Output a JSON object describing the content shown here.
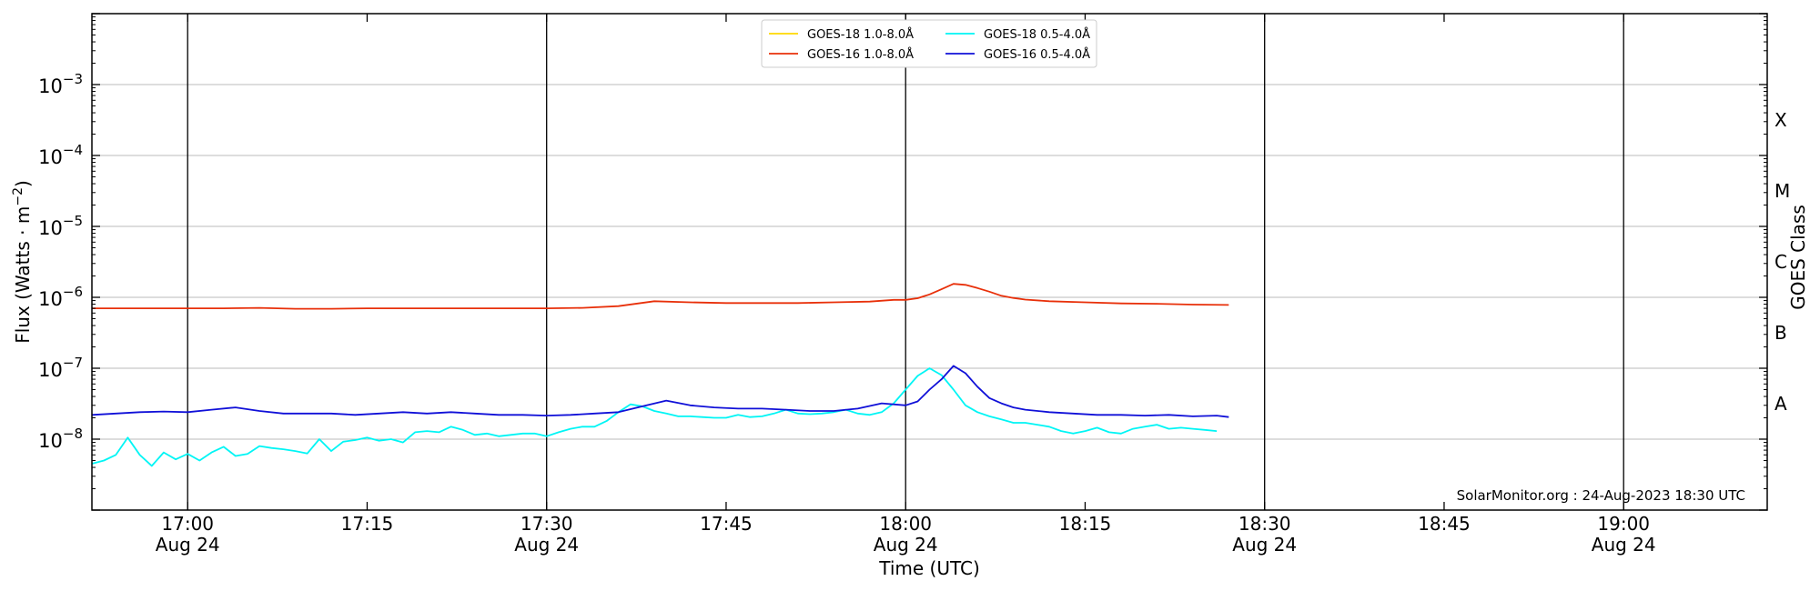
{
  "chart_data": {
    "type": "line",
    "title": "",
    "xlabel": "Time (UTC)",
    "ylabel": "Flux (Watts · m⁻²)",
    "y2label": "GOES Class",
    "yscale": "log",
    "ylim": [
      1e-09,
      0.01
    ],
    "y_tick_labels": [
      {
        "value": 1e-08,
        "base": "10",
        "exp": "−8"
      },
      {
        "value": 1e-07,
        "base": "10",
        "exp": "−7"
      },
      {
        "value": 1e-06,
        "base": "10",
        "exp": "−6"
      },
      {
        "value": 1e-05,
        "base": "10",
        "exp": "−5"
      },
      {
        "value": 0.0001,
        "base": "10",
        "exp": "−4"
      },
      {
        "value": 0.001,
        "base": "10",
        "exp": "−3"
      }
    ],
    "goes_classes": [
      {
        "label": "A",
        "value": 3.16e-08
      },
      {
        "label": "B",
        "value": 3.16e-07
      },
      {
        "label": "C",
        "value": 3.16e-06
      },
      {
        "label": "M",
        "value": 3.16e-05
      },
      {
        "label": "X",
        "value": 0.000316
      }
    ],
    "xlim": [
      "16:52",
      "19:12"
    ],
    "x_ticks": [
      {
        "time": "17:00",
        "label": "17:00",
        "date": "Aug 24"
      },
      {
        "time": "17:15",
        "label": "17:15",
        "date": ""
      },
      {
        "time": "17:30",
        "label": "17:30",
        "date": "Aug 24"
      },
      {
        "time": "17:45",
        "label": "17:45",
        "date": ""
      },
      {
        "time": "18:00",
        "label": "18:00",
        "date": "Aug 24"
      },
      {
        "time": "18:15",
        "label": "18:15",
        "date": ""
      },
      {
        "time": "18:30",
        "label": "18:30",
        "date": "Aug 24"
      },
      {
        "time": "18:45",
        "label": "18:45",
        "date": ""
      },
      {
        "time": "19:00",
        "label": "19:00",
        "date": "Aug 24"
      }
    ],
    "vertical_markers": [
      "17:00",
      "17:30",
      "18:00",
      "18:30",
      "19:00"
    ],
    "grid": "horizontal at decades",
    "legend": {
      "placement": "top-center",
      "columns": 2
    },
    "annotation": "SolarMonitor.org : 24-Aug-2023 18:30 UTC",
    "series": [
      {
        "name": "GOES-18 1.0-8.0Å",
        "color": "#ffd800",
        "x": [],
        "y": []
      },
      {
        "name": "GOES-16 1.0-8.0Å",
        "color": "#e8300a",
        "x": [
          "16:52",
          "17:00",
          "17:03",
          "17:06",
          "17:09",
          "17:12",
          "17:15",
          "17:18",
          "17:21",
          "17:24",
          "17:27",
          "17:30",
          "17:33",
          "17:36",
          "17:39",
          "17:42",
          "17:45",
          "17:48",
          "17:51",
          "17:54",
          "17:57",
          "17:59",
          "18:00",
          "18:01",
          "18:02",
          "18:03",
          "18:04",
          "18:05",
          "18:06",
          "18:07",
          "18:08",
          "18:09",
          "18:10",
          "18:12",
          "18:15",
          "18:18",
          "18:21",
          "18:24",
          "18:27"
        ],
        "y": [
          7e-07,
          7e-07,
          7e-07,
          7.1e-07,
          6.9e-07,
          6.9e-07,
          7e-07,
          7e-07,
          7e-07,
          7e-07,
          7e-07,
          7e-07,
          7.1e-07,
          7.5e-07,
          8.8e-07,
          8.5e-07,
          8.3e-07,
          8.3e-07,
          8.3e-07,
          8.5e-07,
          8.7e-07,
          9.2e-07,
          9.2e-07,
          9.7e-07,
          1.1e-06,
          1.3e-06,
          1.55e-06,
          1.5e-06,
          1.35e-06,
          1.2e-06,
          1.05e-06,
          9.8e-07,
          9.3e-07,
          8.8e-07,
          8.5e-07,
          8.2e-07,
          8.1e-07,
          7.9e-07,
          7.8e-07
        ]
      },
      {
        "name": "GOES-18 0.5-4.0Å",
        "color": "#00f5f5",
        "x": [
          "16:52",
          "16:53",
          "16:54",
          "16:55",
          "16:56",
          "16:57",
          "16:58",
          "16:59",
          "17:00",
          "17:01",
          "17:02",
          "17:03",
          "17:04",
          "17:05",
          "17:06",
          "17:07",
          "17:08",
          "17:09",
          "17:10",
          "17:11",
          "17:12",
          "17:13",
          "17:14",
          "17:15",
          "17:16",
          "17:17",
          "17:18",
          "17:19",
          "17:20",
          "17:21",
          "17:22",
          "17:23",
          "17:24",
          "17:25",
          "17:26",
          "17:27",
          "17:28",
          "17:29",
          "17:30",
          "17:31",
          "17:32",
          "17:33",
          "17:34",
          "17:35",
          "17:36",
          "17:37",
          "17:38",
          "17:39",
          "17:40",
          "17:41",
          "17:42",
          "17:43",
          "17:44",
          "17:45",
          "17:46",
          "17:47",
          "17:48",
          "17:49",
          "17:50",
          "17:51",
          "17:52",
          "17:53",
          "17:54",
          "17:55",
          "17:56",
          "17:57",
          "17:58",
          "17:59",
          "18:00",
          "18:01",
          "18:02",
          "18:03",
          "18:04",
          "18:05",
          "18:06",
          "18:07",
          "18:08",
          "18:09",
          "18:10",
          "18:11",
          "18:12",
          "18:13",
          "18:14",
          "18:15",
          "18:16",
          "18:17",
          "18:18",
          "18:19",
          "18:20",
          "18:21",
          "18:22",
          "18:23",
          "18:24",
          "18:25",
          "18:26"
        ],
        "y": [
          4.5e-09,
          5e-09,
          6e-09,
          1.05e-08,
          6e-09,
          4.2e-09,
          6.5e-09,
          5.2e-09,
          6.2e-09,
          5e-09,
          6.5e-09,
          7.8e-09,
          5.8e-09,
          6.2e-09,
          8e-09,
          7.5e-09,
          7.2e-09,
          6.8e-09,
          6.3e-09,
          1e-08,
          6.8e-09,
          9.2e-09,
          9.7e-09,
          1.05e-08,
          9.5e-09,
          1e-08,
          9e-09,
          1.25e-08,
          1.3e-08,
          1.25e-08,
          1.5e-08,
          1.35e-08,
          1.15e-08,
          1.2e-08,
          1.1e-08,
          1.15e-08,
          1.2e-08,
          1.2e-08,
          1.1e-08,
          1.25e-08,
          1.4e-08,
          1.5e-08,
          1.5e-08,
          1.8e-08,
          2.4e-08,
          3.1e-08,
          2.9e-08,
          2.5e-08,
          2.3e-08,
          2.1e-08,
          2.1e-08,
          2.05e-08,
          2e-08,
          2e-08,
          2.2e-08,
          2.05e-08,
          2.1e-08,
          2.3e-08,
          2.6e-08,
          2.3e-08,
          2.25e-08,
          2.3e-08,
          2.4e-08,
          2.6e-08,
          2.3e-08,
          2.2e-08,
          2.4e-08,
          3.2e-08,
          5e-08,
          7.8e-08,
          1e-07,
          8e-08,
          5e-08,
          3e-08,
          2.4e-08,
          2.1e-08,
          1.9e-08,
          1.7e-08,
          1.7e-08,
          1.6e-08,
          1.5e-08,
          1.3e-08,
          1.2e-08,
          1.3e-08,
          1.45e-08,
          1.25e-08,
          1.2e-08,
          1.4e-08,
          1.5e-08,
          1.6e-08,
          1.4e-08,
          1.45e-08,
          1.4e-08,
          1.35e-08,
          1.3e-08
        ]
      },
      {
        "name": "GOES-16 0.5-4.0Å",
        "color": "#1010d8",
        "x": [
          "16:52",
          "16:54",
          "16:56",
          "16:58",
          "17:00",
          "17:02",
          "17:04",
          "17:06",
          "17:08",
          "17:10",
          "17:12",
          "17:14",
          "17:16",
          "17:18",
          "17:20",
          "17:22",
          "17:24",
          "17:26",
          "17:28",
          "17:30",
          "17:32",
          "17:34",
          "17:36",
          "17:38",
          "17:40",
          "17:42",
          "17:44",
          "17:46",
          "17:48",
          "17:50",
          "17:52",
          "17:54",
          "17:56",
          "17:58",
          "18:00",
          "18:01",
          "18:02",
          "18:03",
          "18:04",
          "18:05",
          "18:06",
          "18:07",
          "18:08",
          "18:09",
          "18:10",
          "18:12",
          "18:14",
          "18:16",
          "18:18",
          "18:20",
          "18:22",
          "18:24",
          "18:26",
          "18:27"
        ],
        "y": [
          2.2e-08,
          2.3e-08,
          2.4e-08,
          2.45e-08,
          2.4e-08,
          2.6e-08,
          2.8e-08,
          2.5e-08,
          2.3e-08,
          2.3e-08,
          2.3e-08,
          2.2e-08,
          2.3e-08,
          2.4e-08,
          2.3e-08,
          2.4e-08,
          2.3e-08,
          2.2e-08,
          2.2e-08,
          2.15e-08,
          2.2e-08,
          2.3e-08,
          2.4e-08,
          2.9e-08,
          3.5e-08,
          3e-08,
          2.8e-08,
          2.7e-08,
          2.7e-08,
          2.6e-08,
          2.5e-08,
          2.5e-08,
          2.7e-08,
          3.2e-08,
          3e-08,
          3.4e-08,
          5e-08,
          7e-08,
          1.08e-07,
          8.5e-08,
          5.5e-08,
          3.8e-08,
          3.2e-08,
          2.8e-08,
          2.6e-08,
          2.4e-08,
          2.3e-08,
          2.2e-08,
          2.2e-08,
          2.15e-08,
          2.2e-08,
          2.1e-08,
          2.15e-08,
          2.05e-08
        ]
      }
    ]
  }
}
